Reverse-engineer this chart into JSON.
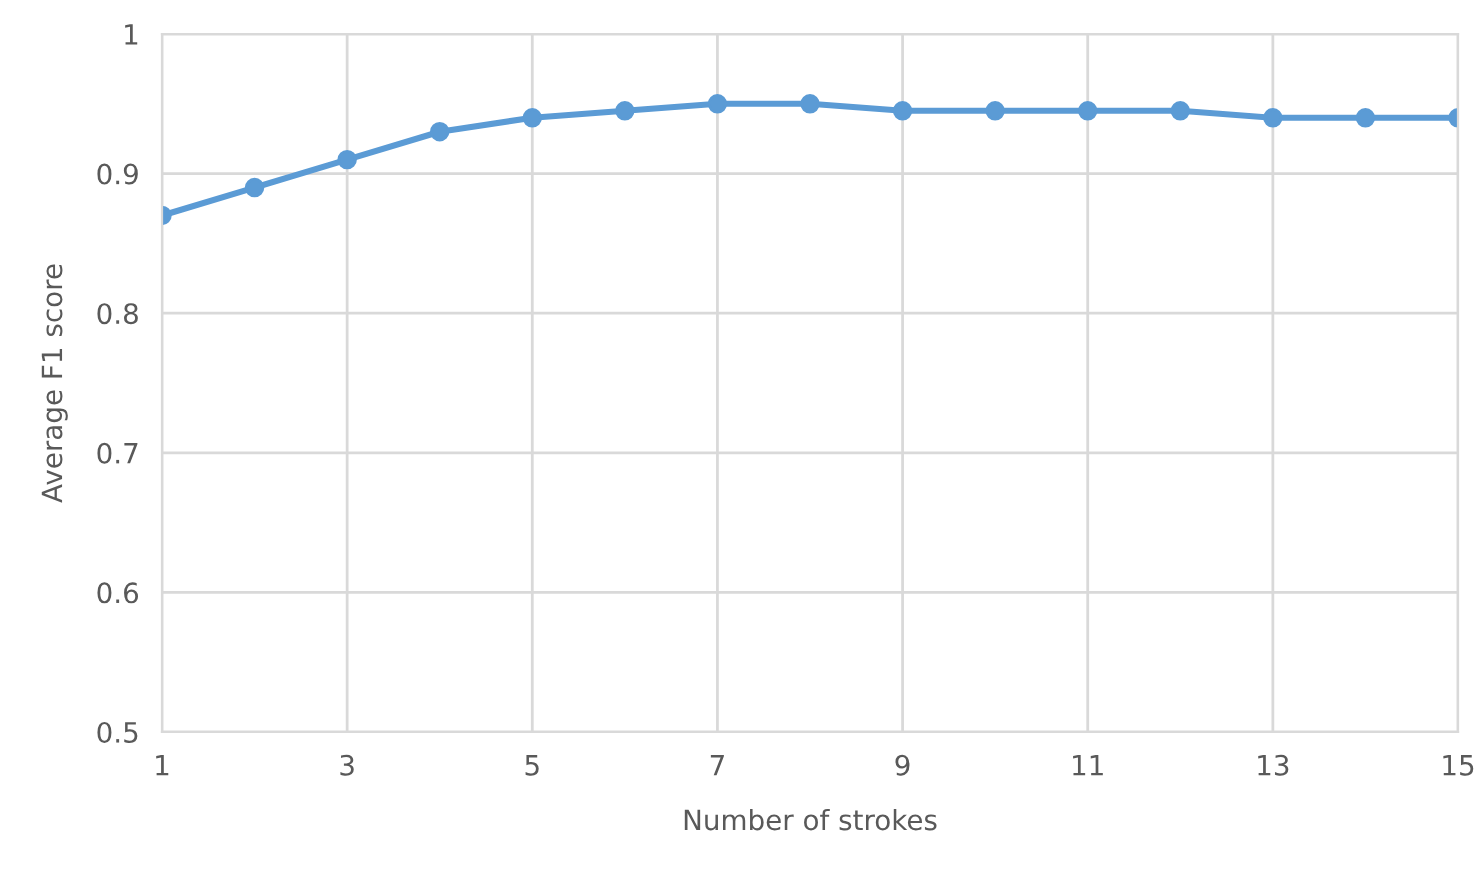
{
  "chart_data": {
    "type": "line",
    "xlabel": "Number of strokes",
    "ylabel": "Average F1 score",
    "x": [
      1,
      2,
      3,
      4,
      5,
      6,
      7,
      8,
      9,
      10,
      11,
      12,
      13,
      14,
      15
    ],
    "series": [
      {
        "color": "#5b9bd5",
        "values": [
          0.87,
          0.89,
          0.91,
          0.93,
          0.94,
          0.945,
          0.95,
          0.95,
          0.945,
          0.945,
          0.945,
          0.945,
          0.94,
          0.94,
          0.94
        ]
      }
    ],
    "xlim": [
      1,
      15
    ],
    "xticks": [
      1,
      3,
      5,
      7,
      9,
      11,
      13,
      15
    ],
    "ylim": [
      0.5,
      1
    ],
    "yticks": [
      0.5,
      0.6,
      0.7,
      0.8,
      0.9,
      1
    ],
    "grid": true,
    "marker": "circle",
    "line_style": "solid",
    "legend": false
  }
}
